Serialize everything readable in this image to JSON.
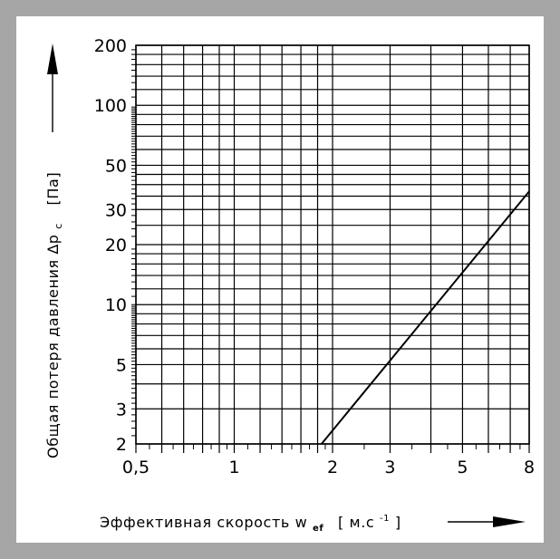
{
  "chart_data": {
    "type": "line",
    "x_scale": "log",
    "y_scale": "log",
    "xlim": [
      0.5,
      8
    ],
    "ylim": [
      2,
      200
    ],
    "grid": true,
    "xlabel": "Эффективная скорость w",
    "xlabel_sub": "ef",
    "xunit_prefix": "[ м.с",
    "xunit_sup": "-1",
    "xunit_suffix": "]",
    "ylabel": "Общая потеря давления ∆p",
    "ylabel_sub": "c",
    "yunit": "[Па]",
    "x_tick_labels": [
      {
        "value": 0.5,
        "label": "0,5"
      },
      {
        "value": 1,
        "label": "1"
      },
      {
        "value": 2,
        "label": "2"
      },
      {
        "value": 3,
        "label": "3"
      },
      {
        "value": 5,
        "label": "5"
      },
      {
        "value": 8,
        "label": "8"
      }
    ],
    "y_tick_labels": [
      {
        "value": 2,
        "label": "2"
      },
      {
        "value": 3,
        "label": "3"
      },
      {
        "value": 5,
        "label": "5"
      },
      {
        "value": 10,
        "label": "10"
      },
      {
        "value": 20,
        "label": "20"
      },
      {
        "value": 30,
        "label": "30"
      },
      {
        "value": 50,
        "label": "50"
      },
      {
        "value": 100,
        "label": "100"
      },
      {
        "value": 200,
        "label": "200"
      }
    ],
    "series": [
      {
        "x": [
          1.85,
          8
        ],
        "y": [
          2,
          37
        ]
      }
    ]
  }
}
